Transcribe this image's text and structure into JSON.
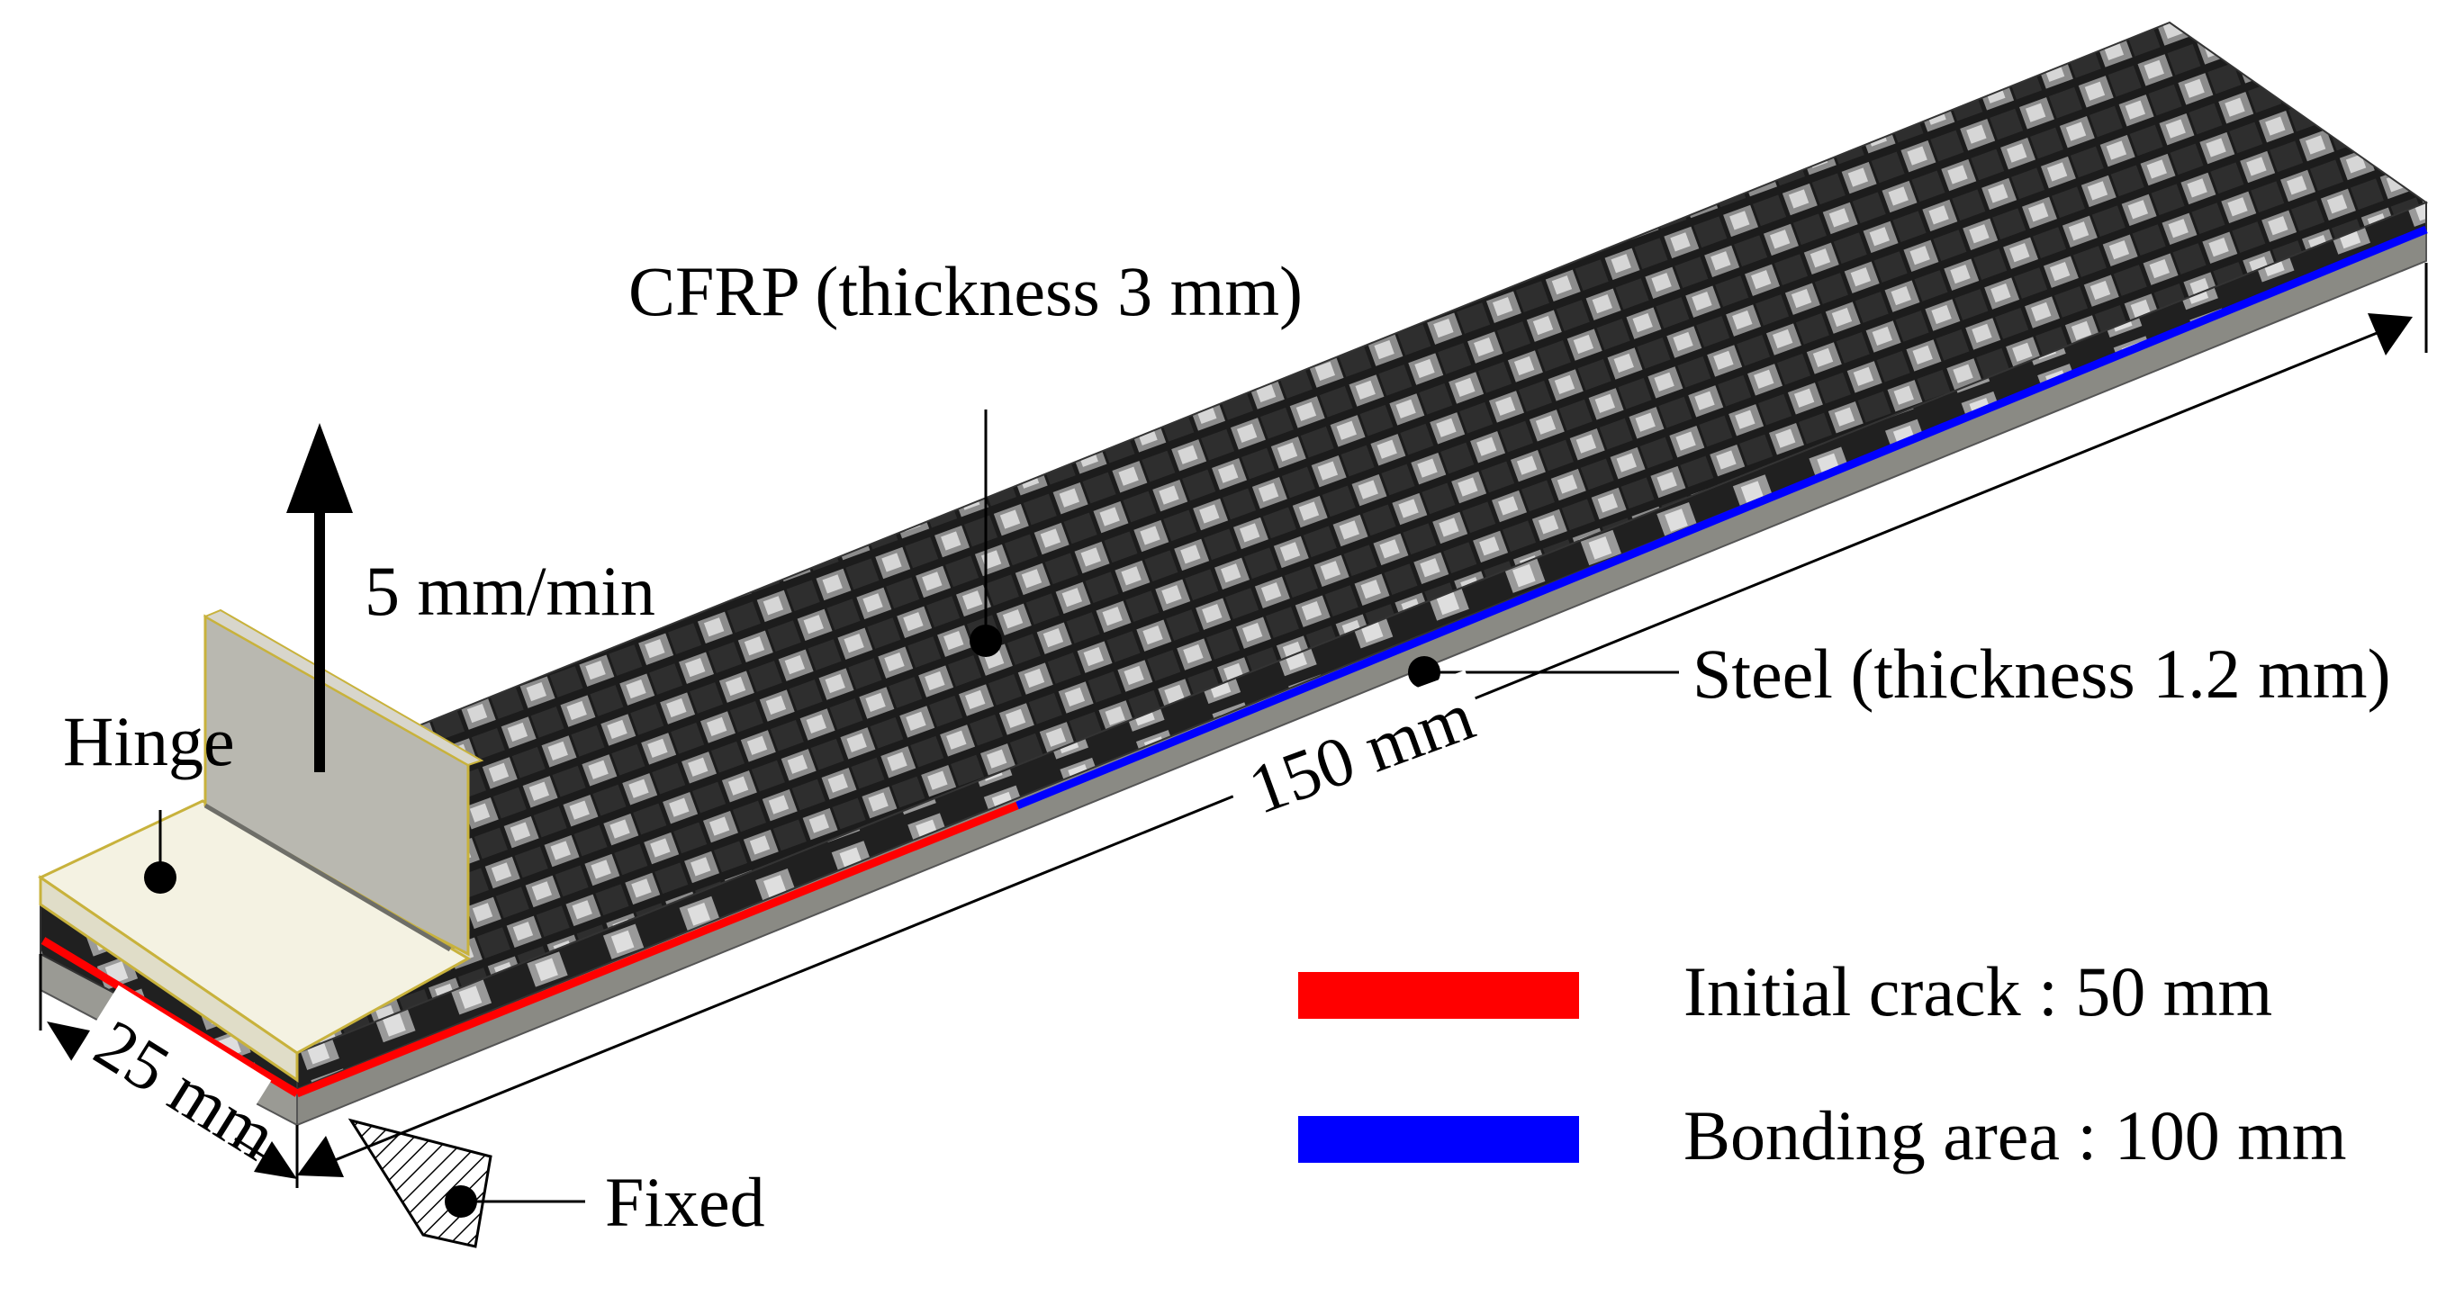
{
  "labels": {
    "cfrp": "CFRP (thickness 3 mm)",
    "speed": "5 mm/min",
    "hinge": "Hinge",
    "steel": "Steel (thickness 1.2 mm)",
    "length": "150 mm",
    "width": "25 mm",
    "fixed": "Fixed"
  },
  "legend": {
    "crack_label": "Initial crack : 50 mm",
    "bonding_label": "Bonding area : 100 mm"
  },
  "colors": {
    "crack": "#ff0000",
    "bonding": "#0000ff",
    "steel": "#8a8a84",
    "hinge": "#f4f2e2",
    "hinge_outline": "#c8b23c"
  }
}
